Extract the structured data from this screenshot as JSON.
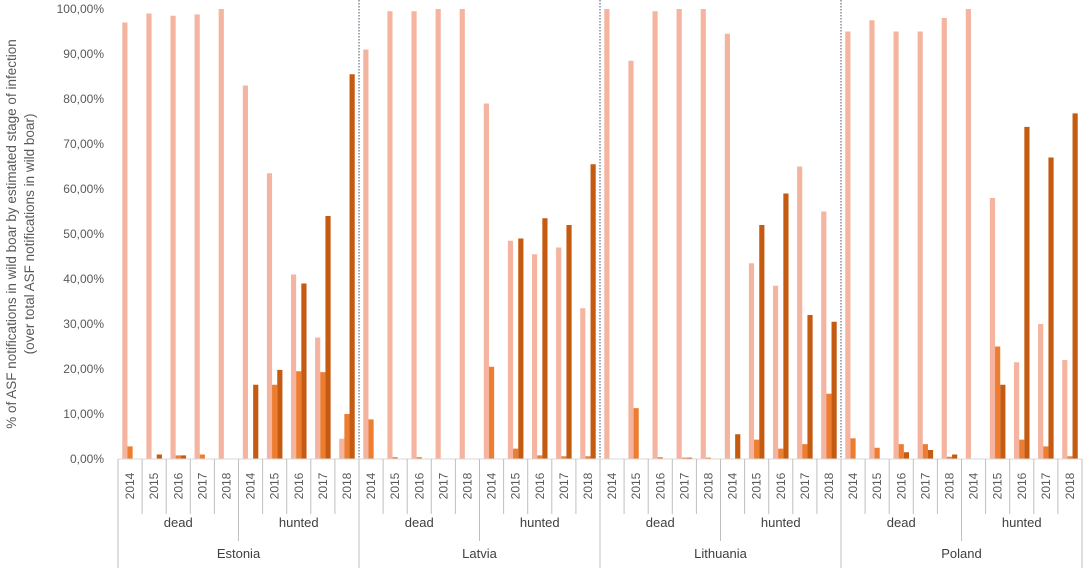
{
  "chart_data": {
    "type": "bar",
    "title": "",
    "ylabel_line1": "% of ASF notifications in wild boar by estimated stage of infection",
    "ylabel_line2": "(over total ASF notifications in wild boar)",
    "ylim": [
      0,
      100
    ],
    "y_ticks": [
      "0,00%",
      "10,00%",
      "20,00%",
      "30,00%",
      "40,00%",
      "50,00%",
      "60,00%",
      "70,00%",
      "80,00%",
      "90,00%",
      "100,00%"
    ],
    "grid": false,
    "legend": "none",
    "colors": [
      "#F4B4A0",
      "#ED7D31",
      "#C55A11"
    ],
    "countries": [
      "Estonia",
      "Latvia",
      "Lithuania",
      "Poland"
    ],
    "types": [
      "dead",
      "hunted"
    ],
    "years": [
      "2014",
      "2015",
      "2016",
      "2017",
      "2018"
    ],
    "series": [
      {
        "values": [
          [
            [
              97.0,
              99.0,
              98.5,
              98.8,
              100.0
            ],
            [
              83.0,
              63.5,
              41.0,
              27.0,
              4.5
            ]
          ],
          [
            [
              91.0,
              99.5,
              99.5,
              100.0,
              100.0
            ],
            [
              79.0,
              48.5,
              45.5,
              47.0,
              33.5
            ]
          ],
          [
            [
              100.0,
              88.5,
              99.5,
              100.0,
              100.0
            ],
            [
              94.5,
              43.5,
              38.5,
              65.0,
              55.0
            ]
          ],
          [
            [
              95.0,
              97.5,
              95.0,
              95.0,
              98.0
            ],
            [
              100.0,
              58.0,
              21.5,
              30.0,
              22.0
            ]
          ]
        ]
      },
      {
        "values": [
          [
            [
              2.8,
              0.0,
              0.8,
              1.0,
              0.0
            ],
            [
              0.0,
              16.5,
              19.5,
              19.3,
              10.0
            ]
          ],
          [
            [
              8.8,
              0.4,
              0.4,
              0.0,
              0.0
            ],
            [
              20.5,
              2.3,
              0.8,
              0.6,
              0.6
            ]
          ],
          [
            [
              0.0,
              11.3,
              0.4,
              0.3,
              0.3
            ],
            [
              0.0,
              4.3,
              2.3,
              3.3,
              14.5
            ]
          ],
          [
            [
              4.6,
              2.5,
              3.3,
              3.3,
              0.5
            ],
            [
              0.0,
              25.0,
              4.3,
              2.8,
              0.6
            ]
          ]
        ]
      },
      {
        "values": [
          [
            [
              0.0,
              1.0,
              0.8,
              0.0,
              0.0
            ],
            [
              16.5,
              19.8,
              39.0,
              54.0,
              85.5
            ]
          ],
          [
            [
              0.0,
              0.0,
              0.0,
              0.0,
              0.0
            ],
            [
              0.0,
              49.0,
              53.5,
              52.0,
              65.5
            ]
          ],
          [
            [
              0.0,
              0.0,
              0.0,
              0.3,
              0.0
            ],
            [
              5.5,
              52.0,
              59.0,
              32.0,
              30.5
            ]
          ],
          [
            [
              0.0,
              0.0,
              1.5,
              2.0,
              1.0
            ],
            [
              0.0,
              16.5,
              73.8,
              67.0,
              76.8
            ]
          ]
        ]
      }
    ]
  }
}
